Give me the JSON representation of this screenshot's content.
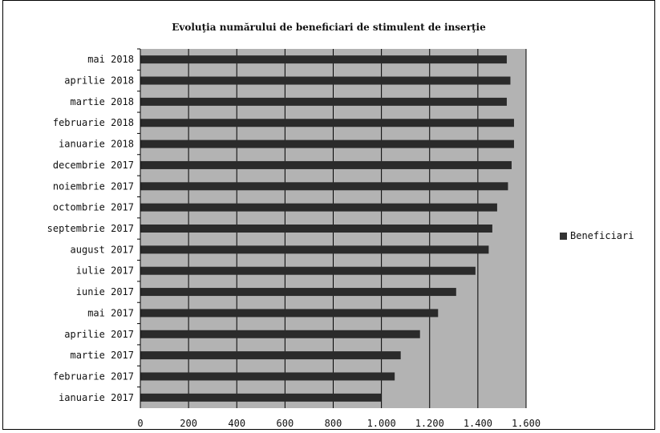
{
  "chart_data": {
    "type": "bar",
    "orientation": "horizontal",
    "title": "Evoluţia numărului de beneficiari de stimulent de inserţie",
    "categories": [
      "mai 2018",
      "aprilie 2018",
      "martie 2018",
      "februarie 2018",
      "ianuarie 2018",
      "decembrie 2017",
      "noiembrie 2017",
      "octombrie 2017",
      "septembrie 2017",
      "august 2017",
      "iulie 2017",
      "iunie 2017",
      "mai 2017",
      "aprilie 2017",
      "martie 2017",
      "februarie 2017",
      "ianuarie 2017"
    ],
    "series": [
      {
        "name": "Beneficiari",
        "values": [
          1520,
          1535,
          1520,
          1550,
          1550,
          1540,
          1525,
          1480,
          1460,
          1445,
          1390,
          1310,
          1235,
          1160,
          1080,
          1055,
          1000
        ]
      }
    ],
    "xlim": [
      0,
      1600
    ],
    "x_ticks": [
      "0",
      "200",
      "400",
      "600",
      "800",
      "1.000",
      "1.200",
      "1.400",
      "1.600"
    ],
    "grid": true,
    "legend_position": "right",
    "colors": {
      "bar": "#2b2b2b",
      "plot_background": "#b3b3b3",
      "gridline": "#000000"
    }
  }
}
